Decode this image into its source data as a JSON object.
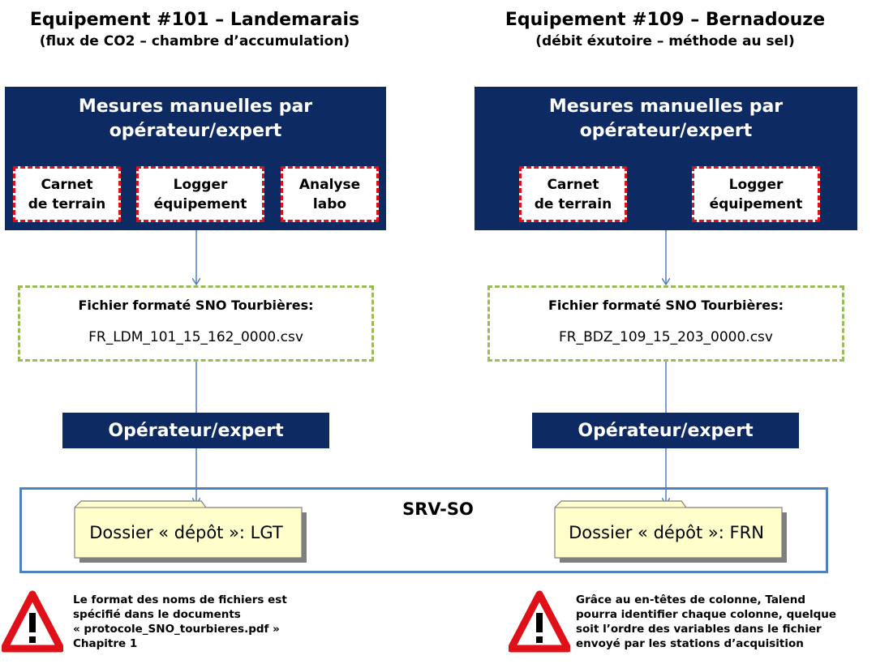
{
  "left": {
    "title": "Equipement #101 – Landemarais",
    "subtitle": "(flux de CO2 – chambre d’accumulation)",
    "box_title_line1": "Mesures manuelles par",
    "box_title_line2": "opérateur/expert",
    "sources": [
      {
        "line1": "Carnet",
        "line2": "de terrain"
      },
      {
        "line1": "Logger",
        "line2": "équipement"
      },
      {
        "line1": "Analyse",
        "line2": "labo"
      }
    ],
    "file_header": "Fichier formaté SNO Tourbières:",
    "file_name": "FR_LDM_101_15_162_0000.csv",
    "operator": "Opérateur/expert",
    "folder": "Dossier « dépôt »: LGT",
    "note_lines": [
      "Le format des noms de fichiers est",
      "spécifié dans le documents",
      "« protocole_SNO_tourbieres.pdf »",
      "Chapitre 1"
    ]
  },
  "right": {
    "title": "Equipement #109 – Bernadouze",
    "subtitle": "(débit éxutoire – méthode au sel)",
    "box_title_line1": "Mesures manuelles par",
    "box_title_line2": "opérateur/expert",
    "sources": [
      {
        "line1": "Carnet",
        "line2": "de terrain"
      },
      {
        "line1": "Logger",
        "line2": "équipement"
      }
    ],
    "file_header": "Fichier formaté SNO Tourbières:",
    "file_name": "FR_BDZ_109_15_203_0000.csv",
    "operator": "Opérateur/expert",
    "folder": "Dossier « dépôt »: FRN",
    "note_lines": [
      "Grâce au en-têtes de colonne, Talend",
      "pourra identifier chaque colonne, quelque",
      "soit l’ordre des variables dans le fichier",
      "envoyé par les stations d’acquisition"
    ]
  },
  "server": {
    "label": "SRV-SO"
  },
  "colors": {
    "navy": "#0d2a63",
    "red_dash": "#e01018",
    "green_dash": "#9bbb59",
    "connector": "#4f81bd",
    "folder_fill": "#ffffcc",
    "warning_red": "#e01018"
  },
  "icons": [
    "warning-icon",
    "folder-icon",
    "arrow-down-icon"
  ]
}
